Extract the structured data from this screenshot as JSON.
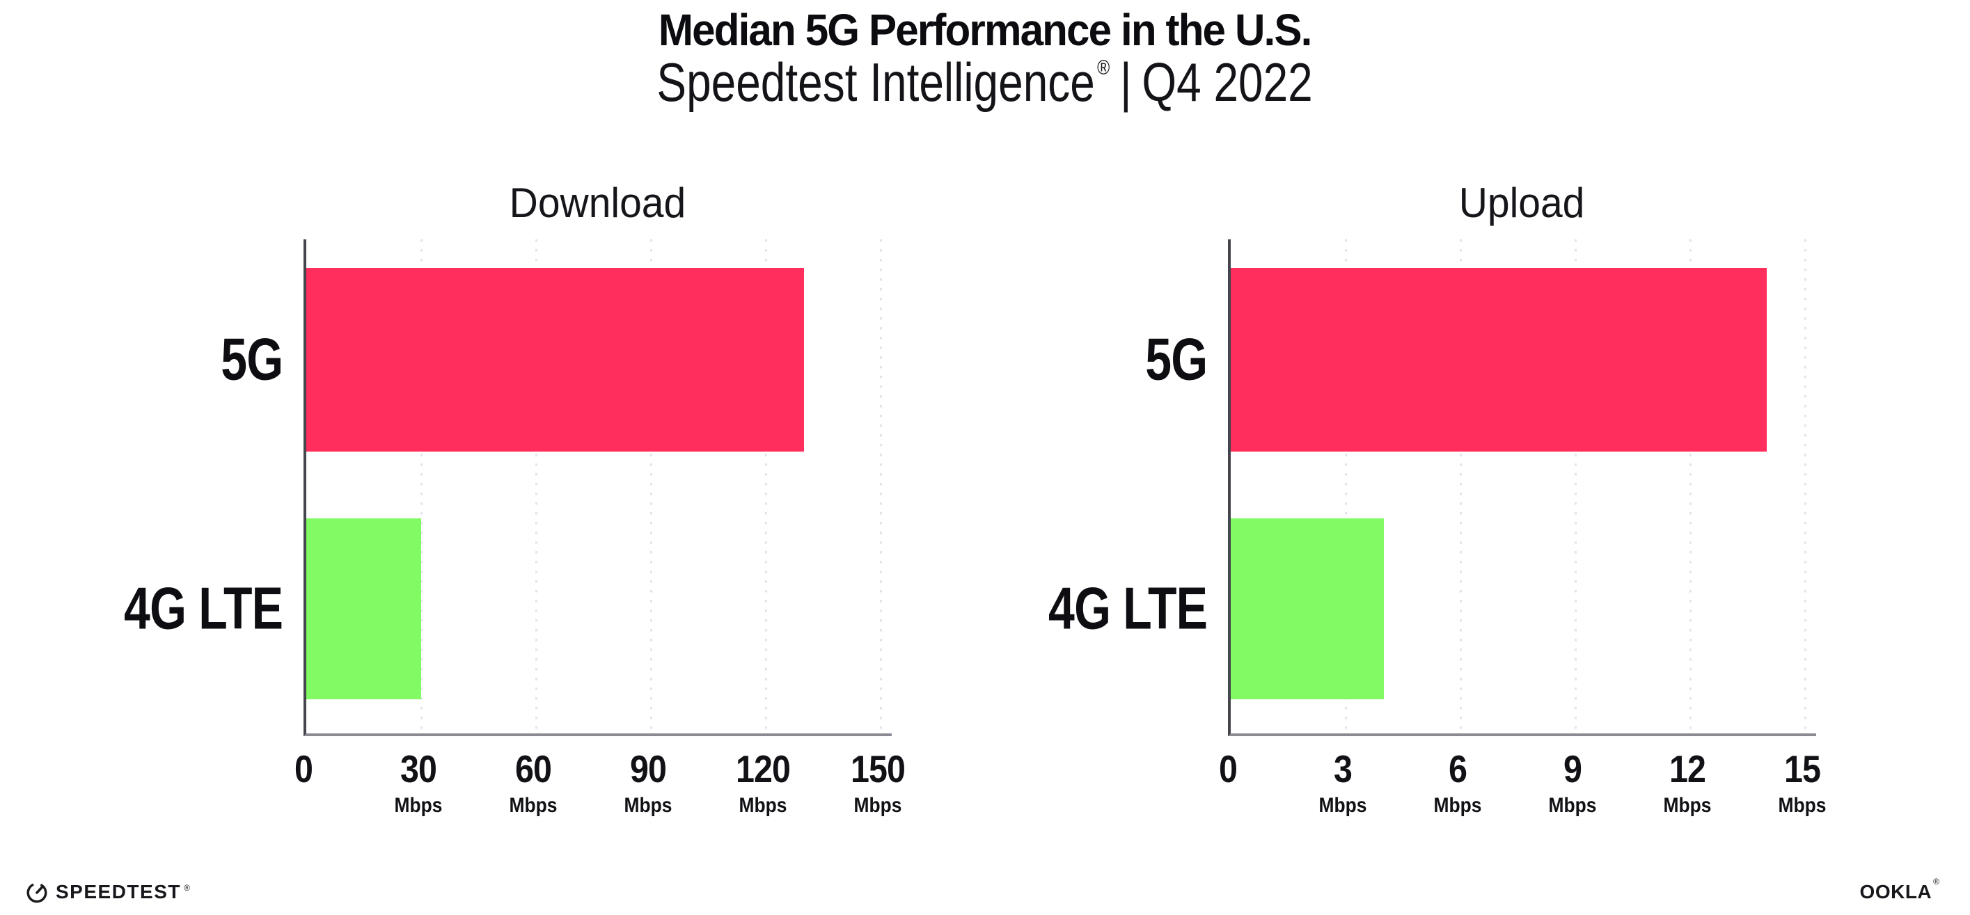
{
  "header": {
    "title": "Median 5G Performance in the U.S.",
    "subtitle": {
      "product": "Speedtest Intelligence",
      "registered_mark": "®",
      "separator": "|",
      "period": "Q4 2022"
    }
  },
  "chart_data": [
    {
      "type": "bar",
      "orientation": "horizontal",
      "title": "Download",
      "categories": [
        "5G",
        "4G LTE"
      ],
      "values": [
        130,
        30
      ],
      "unit": "Mbps",
      "xlabel": "",
      "ylabel": "",
      "xlim": [
        0,
        150
      ],
      "xticks": [
        0,
        30,
        60,
        90,
        120,
        150
      ],
      "bar_colors": [
        "#FF2E5C",
        "#81FA63"
      ],
      "grid": "vertical-dotted",
      "legend_position": "none"
    },
    {
      "type": "bar",
      "orientation": "horizontal",
      "title": "Upload",
      "categories": [
        "5G",
        "4G LTE"
      ],
      "values": [
        14,
        4
      ],
      "unit": "Mbps",
      "xlabel": "",
      "ylabel": "",
      "xlim": [
        0,
        15
      ],
      "xticks": [
        0,
        3,
        6,
        9,
        12,
        15
      ],
      "bar_colors": [
        "#FF2E5C",
        "#81FA63"
      ],
      "grid": "vertical-dotted",
      "legend_position": "none"
    }
  ],
  "footer": {
    "speedtest_wordmark": "SPEEDTEST",
    "speedtest_reg": "®",
    "ookla_wordmark": "OOKLA",
    "ookla_reg": "®"
  },
  "colors": {
    "bar_5g": "#FF2E5C",
    "bar_4g_lte": "#81FA63",
    "gridline": "#E3E3EE",
    "axis_left": "#45454E",
    "axis_bottom": "#8B8B94",
    "text": "#111111",
    "background": "#FFFFFF"
  }
}
